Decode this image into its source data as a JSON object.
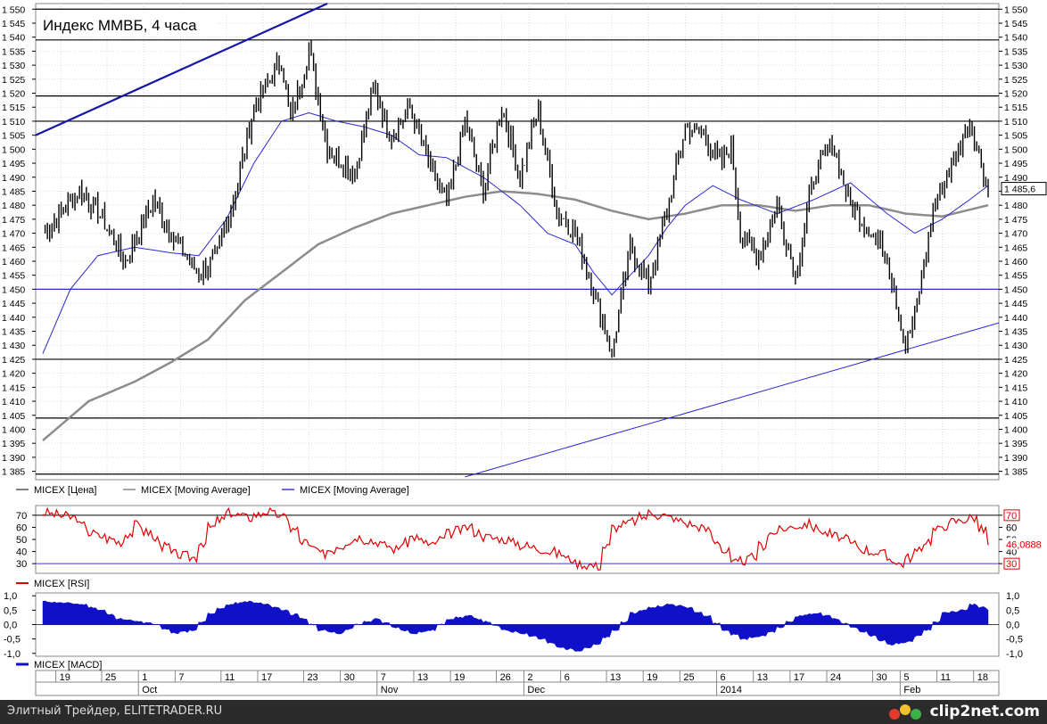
{
  "chart_data": [
    {
      "type": "line",
      "title": "Индекс ММВБ, 4 часа",
      "yticks": [
        1385,
        1390,
        1395,
        1400,
        1405,
        1410,
        1415,
        1420,
        1425,
        1430,
        1435,
        1440,
        1445,
        1450,
        1455,
        1460,
        1465,
        1470,
        1475,
        1480,
        1485,
        1490,
        1495,
        1500,
        1505,
        1510,
        1515,
        1520,
        1525,
        1530,
        1535,
        1540,
        1545,
        1550
      ],
      "ylim": [
        1382,
        1552
      ],
      "last_value_label": "1 485,6",
      "horizontal_levels": [
        1550,
        1539,
        1519,
        1510,
        1450,
        1425,
        1404,
        1384
      ],
      "legend": [
        {
          "name": "MICEX [Цена]",
          "color": "#555555"
        },
        {
          "name": "MICEX [Moving Average]",
          "color": "#888888"
        },
        {
          "name": "MICEX [Moving Average]",
          "color": "#3a3acc"
        }
      ],
      "colors": {
        "price": "#000000",
        "ma_long": "#8c8c8c",
        "ma_short": "#2a2ad0",
        "level_black": "#000000",
        "level_blue": "#2a2ad0",
        "trend_upper": "#1515a8"
      },
      "price_keypoints": [
        [
          0,
          1470
        ],
        [
          4,
          1485
        ],
        [
          6,
          1478
        ],
        [
          9,
          1460
        ],
        [
          12,
          1482
        ],
        [
          14,
          1470
        ],
        [
          17,
          1455
        ],
        [
          19,
          1462
        ],
        [
          21,
          1485
        ],
        [
          23,
          1515
        ],
        [
          26,
          1532
        ],
        [
          27,
          1510
        ],
        [
          29,
          1536
        ],
        [
          31,
          1500
        ],
        [
          34,
          1492
        ],
        [
          36,
          1522
        ],
        [
          38,
          1505
        ],
        [
          40,
          1515
        ],
        [
          42,
          1495
        ],
        [
          44,
          1480
        ],
        [
          46,
          1510
        ],
        [
          48,
          1485
        ],
        [
          50,
          1515
        ],
        [
          52,
          1490
        ],
        [
          54,
          1514
        ],
        [
          56,
          1478
        ],
        [
          58,
          1470
        ],
        [
          60,
          1450
        ],
        [
          62,
          1427
        ],
        [
          64,
          1465
        ],
        [
          66,
          1452
        ],
        [
          68,
          1478
        ],
        [
          70,
          1508
        ],
        [
          72,
          1505
        ],
        [
          74,
          1495
        ],
        [
          75,
          1502
        ],
        [
          76,
          1470
        ],
        [
          78,
          1462
        ],
        [
          80,
          1480
        ],
        [
          82,
          1455
        ],
        [
          84,
          1490
        ],
        [
          86,
          1502
        ],
        [
          88,
          1480
        ],
        [
          90,
          1472
        ],
        [
          92,
          1462
        ],
        [
          94,
          1430
        ],
        [
          95,
          1440
        ],
        [
          97,
          1478
        ],
        [
          99,
          1495
        ],
        [
          101,
          1510
        ],
        [
          102,
          1498
        ],
        [
          103,
          1485.6
        ]
      ],
      "ma_short_keypoints": [
        [
          0,
          1427
        ],
        [
          3,
          1450
        ],
        [
          6,
          1462
        ],
        [
          10,
          1465
        ],
        [
          14,
          1463
        ],
        [
          17,
          1462
        ],
        [
          20,
          1475
        ],
        [
          23,
          1495
        ],
        [
          26,
          1510
        ],
        [
          29,
          1513
        ],
        [
          32,
          1510
        ],
        [
          35,
          1508
        ],
        [
          38,
          1505
        ],
        [
          41,
          1498
        ],
        [
          44,
          1497
        ],
        [
          48,
          1490
        ],
        [
          52,
          1480
        ],
        [
          55,
          1470
        ],
        [
          58,
          1466
        ],
        [
          60,
          1456
        ],
        [
          62,
          1448
        ],
        [
          64,
          1455
        ],
        [
          66,
          1462
        ],
        [
          68,
          1472
        ],
        [
          70,
          1480
        ],
        [
          73,
          1487
        ],
        [
          76,
          1482
        ],
        [
          80,
          1477
        ],
        [
          84,
          1482
        ],
        [
          88,
          1488
        ],
        [
          92,
          1477
        ],
        [
          95,
          1470
        ],
        [
          98,
          1475
        ],
        [
          101,
          1482
        ],
        [
          103,
          1487
        ]
      ],
      "ma_long_keypoints": [
        [
          0,
          1396
        ],
        [
          5,
          1410
        ],
        [
          10,
          1417
        ],
        [
          14,
          1424
        ],
        [
          18,
          1432
        ],
        [
          22,
          1446
        ],
        [
          26,
          1456
        ],
        [
          30,
          1466
        ],
        [
          34,
          1472
        ],
        [
          38,
          1477
        ],
        [
          42,
          1480
        ],
        [
          46,
          1483
        ],
        [
          50,
          1485
        ],
        [
          54,
          1484
        ],
        [
          58,
          1482
        ],
        [
          62,
          1478
        ],
        [
          66,
          1475
        ],
        [
          70,
          1477
        ],
        [
          74,
          1480
        ],
        [
          78,
          1480
        ],
        [
          82,
          1478
        ],
        [
          86,
          1480
        ],
        [
          90,
          1480
        ],
        [
          94,
          1477
        ],
        [
          98,
          1476
        ],
        [
          103,
          1480
        ]
      ]
    },
    {
      "type": "line",
      "name": "MICEX [RSI]",
      "yticks": [
        30,
        40,
        50,
        60,
        70
      ],
      "levels": [
        70,
        30
      ],
      "last_value_label": "46,0888",
      "level_labels": [
        "70",
        "30"
      ],
      "colors": {
        "line": "#e00000",
        "level": "#3a3acc"
      },
      "keypoints": [
        [
          0,
          72
        ],
        [
          3,
          68
        ],
        [
          5,
          55
        ],
        [
          8,
          48
        ],
        [
          10,
          62
        ],
        [
          12,
          50
        ],
        [
          14,
          38
        ],
        [
          16,
          35
        ],
        [
          18,
          60
        ],
        [
          20,
          72
        ],
        [
          22,
          68
        ],
        [
          24,
          73
        ],
        [
          26,
          68
        ],
        [
          28,
          48
        ],
        [
          30,
          38
        ],
        [
          32,
          45
        ],
        [
          34,
          52
        ],
        [
          36,
          48
        ],
        [
          38,
          42
        ],
        [
          40,
          52
        ],
        [
          42,
          45
        ],
        [
          44,
          55
        ],
        [
          46,
          60
        ],
        [
          48,
          52
        ],
        [
          50,
          50
        ],
        [
          52,
          45
        ],
        [
          54,
          42
        ],
        [
          56,
          38
        ],
        [
          58,
          30
        ],
        [
          60,
          28
        ],
        [
          62,
          60
        ],
        [
          64,
          65
        ],
        [
          66,
          72
        ],
        [
          68,
          68
        ],
        [
          70,
          63
        ],
        [
          72,
          58
        ],
        [
          74,
          40
        ],
        [
          75,
          30
        ],
        [
          77,
          35
        ],
        [
          79,
          55
        ],
        [
          81,
          60
        ],
        [
          83,
          63
        ],
        [
          85,
          55
        ],
        [
          87,
          50
        ],
        [
          89,
          42
        ],
        [
          91,
          38
        ],
        [
          93,
          30
        ],
        [
          95,
          40
        ],
        [
          97,
          58
        ],
        [
          99,
          65
        ],
        [
          101,
          68
        ],
        [
          102,
          58
        ],
        [
          103,
          46
        ]
      ]
    },
    {
      "type": "area",
      "name": "MICEX [MACD]",
      "yticks": [
        1.0,
        0.5,
        0.0,
        -0.5,
        -1.0
      ],
      "ytick_labels_left": [
        "1,0",
        "0,5",
        "0,0",
        "-0,5",
        "-1,0"
      ],
      "ytick_labels_right": [
        "1,0",
        "0,5",
        "0,0",
        "-0,5",
        "-1,0"
      ],
      "ylim": [
        -1.1,
        1.1
      ],
      "colors": {
        "fill": "#1010c8"
      },
      "keypoints": [
        [
          0,
          0.8
        ],
        [
          4,
          0.7
        ],
        [
          6,
          0.5
        ],
        [
          8,
          0.2
        ],
        [
          10,
          0.1
        ],
        [
          12,
          0.0
        ],
        [
          14,
          -0.3
        ],
        [
          16,
          -0.2
        ],
        [
          18,
          0.4
        ],
        [
          20,
          0.7
        ],
        [
          22,
          0.8
        ],
        [
          24,
          0.7
        ],
        [
          26,
          0.5
        ],
        [
          28,
          0.2
        ],
        [
          30,
          -0.2
        ],
        [
          32,
          -0.3
        ],
        [
          34,
          0.0
        ],
        [
          36,
          0.2
        ],
        [
          38,
          -0.1
        ],
        [
          40,
          -0.3
        ],
        [
          42,
          -0.2
        ],
        [
          44,
          0.2
        ],
        [
          46,
          0.3
        ],
        [
          48,
          0.1
        ],
        [
          50,
          -0.2
        ],
        [
          52,
          -0.3
        ],
        [
          54,
          -0.5
        ],
        [
          56,
          -0.8
        ],
        [
          58,
          -0.9
        ],
        [
          60,
          -0.7
        ],
        [
          62,
          -0.2
        ],
        [
          64,
          0.4
        ],
        [
          66,
          0.6
        ],
        [
          68,
          0.7
        ],
        [
          70,
          0.6
        ],
        [
          72,
          0.3
        ],
        [
          74,
          -0.2
        ],
        [
          76,
          -0.5
        ],
        [
          78,
          -0.4
        ],
        [
          80,
          -0.1
        ],
        [
          82,
          0.3
        ],
        [
          84,
          0.4
        ],
        [
          86,
          0.2
        ],
        [
          88,
          -0.1
        ],
        [
          90,
          -0.4
        ],
        [
          92,
          -0.7
        ],
        [
          94,
          -0.6
        ],
        [
          96,
          -0.2
        ],
        [
          98,
          0.4
        ],
        [
          100,
          0.5
        ],
        [
          101,
          0.7
        ],
        [
          102,
          0.6
        ],
        [
          103,
          0.5
        ]
      ]
    }
  ],
  "x_axis": {
    "day_labels": [
      {
        "i": 2,
        "label": "19"
      },
      {
        "i": 7,
        "label": "25"
      },
      {
        "i": 11,
        "label": "1"
      },
      {
        "i": 15,
        "label": "7"
      },
      {
        "i": 20,
        "label": "11"
      },
      {
        "i": 24,
        "label": "17"
      },
      {
        "i": 29,
        "label": "23"
      },
      {
        "i": 33,
        "label": "30"
      },
      {
        "i": 37,
        "label": "7"
      },
      {
        "i": 41,
        "label": "13"
      },
      {
        "i": 45,
        "label": "19"
      },
      {
        "i": 50,
        "label": "26"
      },
      {
        "i": 53,
        "label": "2"
      },
      {
        "i": 57,
        "label": "6"
      },
      {
        "i": 62,
        "label": "13"
      },
      {
        "i": 66,
        "label": "19"
      },
      {
        "i": 70,
        "label": "25"
      },
      {
        "i": 74,
        "label": "6"
      },
      {
        "i": 78,
        "label": "13"
      },
      {
        "i": 82,
        "label": "17"
      },
      {
        "i": 86,
        "label": "24"
      },
      {
        "i": 91,
        "label": "30"
      },
      {
        "i": 94,
        "label": "5"
      },
      {
        "i": 98,
        "label": "11"
      },
      {
        "i": 102,
        "label": "18"
      }
    ],
    "month_labels": [
      {
        "i": 11,
        "label": "Oct"
      },
      {
        "i": 37,
        "label": "Nov"
      },
      {
        "i": 53,
        "label": "Dec"
      },
      {
        "i": 74,
        "label": "2014"
      },
      {
        "i": 94,
        "label": "Feb"
      }
    ]
  },
  "footer": {
    "left_text": "Элитный Трейдер, ELITETRADER.RU",
    "logo_text": "clip2net.com"
  }
}
